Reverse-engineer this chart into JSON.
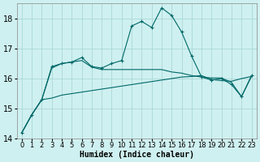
{
  "x": [
    0,
    1,
    2,
    3,
    4,
    5,
    6,
    7,
    8,
    9,
    10,
    11,
    12,
    13,
    14,
    15,
    16,
    17,
    18,
    19,
    20,
    21,
    22,
    23
  ],
  "upper": [
    14.2,
    14.8,
    15.3,
    16.4,
    16.5,
    16.55,
    16.7,
    16.4,
    16.35,
    16.5,
    16.6,
    17.75,
    17.9,
    17.7,
    18.35,
    18.1,
    17.55,
    16.75,
    16.05,
    15.95,
    16.0,
    15.8,
    15.4,
    16.1
  ],
  "mid": [
    14.2,
    14.8,
    15.3,
    16.35,
    16.5,
    16.55,
    16.6,
    16.38,
    16.3,
    16.3,
    16.3,
    16.3,
    16.3,
    16.3,
    16.3,
    16.22,
    16.18,
    16.1,
    16.05,
    16.02,
    16.02,
    15.87,
    15.4,
    16.07
  ],
  "lower": [
    14.2,
    14.8,
    15.3,
    15.35,
    15.45,
    15.5,
    15.55,
    15.6,
    15.65,
    15.7,
    15.75,
    15.8,
    15.85,
    15.9,
    15.95,
    16.0,
    16.05,
    16.07,
    16.1,
    15.97,
    15.93,
    15.91,
    16.0,
    16.07
  ],
  "ylim": [
    14.0,
    18.5
  ],
  "xlim": [
    -0.5,
    23.5
  ],
  "bg_color": "#cff0f0",
  "grid_color": "#aad8d8",
  "line_color": "#006868",
  "xlabel": "Humidex (Indice chaleur)",
  "xlabel_fontsize": 7,
  "tick_fontsize": 6,
  "yticks": [
    14,
    15,
    16,
    17,
    18
  ],
  "xtick_labels": [
    "0",
    "1",
    "2",
    "3",
    "4",
    "5",
    "6",
    "7",
    "8",
    "9",
    "10",
    "11",
    "12",
    "13",
    "14",
    "15",
    "16",
    "17",
    "18",
    "19",
    "20",
    "21",
    "22",
    "23"
  ]
}
